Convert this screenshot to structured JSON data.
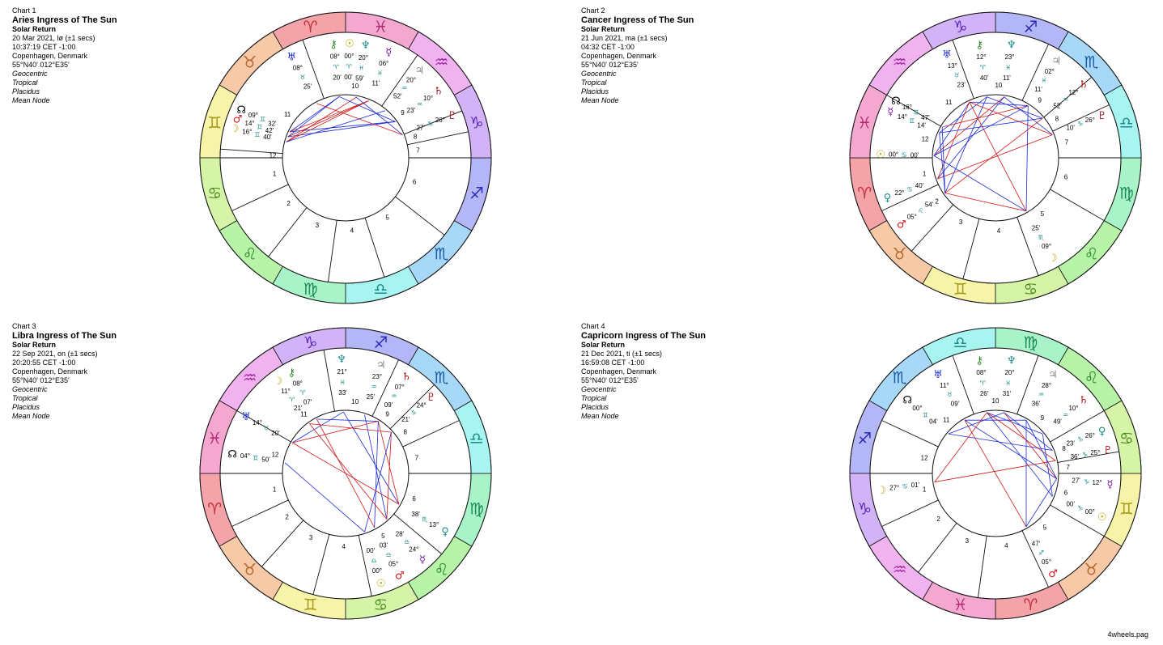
{
  "colors": {
    "blue_aspect": "#1a2bd6",
    "red_aspect": "#d01818",
    "ring_stroke": "#111111"
  },
  "signs": [
    {
      "glyph": "♈",
      "color": "#f4a3a8",
      "fg": "#c5303a"
    },
    {
      "glyph": "♉",
      "color": "#f7c9a6",
      "fg": "#b5652a"
    },
    {
      "glyph": "♊",
      "color": "#f7f3a8",
      "fg": "#a59a1a"
    },
    {
      "glyph": "♋",
      "color": "#d5f4a8",
      "fg": "#4a8a1a"
    },
    {
      "glyph": "♌",
      "color": "#b8f4a8",
      "fg": "#2a8a2a"
    },
    {
      "glyph": "♍",
      "color": "#a8f4c8",
      "fg": "#1a8a55"
    },
    {
      "glyph": "♎",
      "color": "#a8f4f0",
      "fg": "#1a8a88"
    },
    {
      "glyph": "♏",
      "color": "#a8d8f7",
      "fg": "#1a5aa5"
    },
    {
      "glyph": "♐",
      "color": "#b3b6f7",
      "fg": "#2a2ab5"
    },
    {
      "glyph": "♑",
      "color": "#d3b3f7",
      "fg": "#5a2ab5"
    },
    {
      "glyph": "♒",
      "color": "#f0b3f0",
      "fg": "#a52aa5"
    },
    {
      "glyph": "♓",
      "color": "#f4a8d0",
      "fg": "#b52a75"
    }
  ],
  "charts": [
    {
      "label": "Chart 1",
      "title": "Aries Ingress of The Sun",
      "subtitle": "Solar Return",
      "date": "20 Mar 2021, lø  (±1 secs)",
      "time": "10:37:19  CET  -1:00",
      "place": "Copenhagen, Denmark",
      "coords": "55°N40' 012°E35'",
      "settings": [
        "Geocentric",
        "Tropical",
        "Placidus",
        "Mean Node"
      ],
      "asc": 90,
      "houses": [
        {
          "n": "1",
          "a": 180
        },
        {
          "n": "2",
          "a": 205
        },
        {
          "n": "3",
          "a": 232
        },
        {
          "n": "4",
          "a": 262
        },
        {
          "n": "5",
          "a": 288
        },
        {
          "n": "6",
          "a": 322
        },
        {
          "n": "7",
          "a": 0
        },
        {
          "n": "8",
          "a": 12
        },
        {
          "n": "9",
          "a": 22
        },
        {
          "n": "10",
          "a": 55
        },
        {
          "n": "11",
          "a": 110
        },
        {
          "n": "12",
          "a": 176
        }
      ],
      "planets": [
        {
          "g": "☊",
          "c": "#000000",
          "a": 155,
          "deg": "09°",
          "sg": "♊",
          "min": "32'"
        },
        {
          "g": "♂",
          "c": "#d01818",
          "a": 160,
          "deg": "14°",
          "sg": "♊",
          "min": "42'"
        },
        {
          "g": "☽",
          "c": "#b8a000",
          "a": 165,
          "deg": "16°",
          "sg": "♊",
          "min": "40'"
        },
        {
          "g": "♅",
          "c": "#1a2bd6",
          "a": 118,
          "deg": "08°",
          "sg": "♉",
          "min": "25'"
        },
        {
          "g": "⚷",
          "c": "#2a8a2a",
          "a": 96,
          "deg": "08°",
          "sg": "♈",
          "min": "20'"
        },
        {
          "g": "☉",
          "c": "#b8a000",
          "a": 88,
          "deg": "00°",
          "sg": "♈",
          "min": "00'"
        },
        {
          "g": "♆",
          "c": "#1a8a88",
          "a": 80,
          "deg": "20°",
          "sg": "♓",
          "min": "59'"
        },
        {
          "g": "☿",
          "c": "#7a1aa5",
          "a": 68,
          "deg": "06°",
          "sg": "♓",
          "min": "11'"
        },
        {
          "g": "♃",
          "c": "#888888",
          "a": 50,
          "deg": "20°",
          "sg": "♒",
          "min": "52'"
        },
        {
          "g": "♄",
          "c": "#a51a1a",
          "a": 36,
          "deg": "10°",
          "sg": "♒",
          "min": "23'"
        },
        {
          "g": "♇",
          "c": "#a51a1a",
          "a": 22,
          "deg": "26°",
          "sg": "♑",
          "min": "27'"
        }
      ]
    },
    {
      "label": "Chart 2",
      "title": "Cancer Ingress of The Sun",
      "subtitle": "Solar Return",
      "date": "21 Jun 2021, ma  (±1 secs)",
      "time": "04:32  CET  -1:00",
      "place": "Copenhagen, Denmark",
      "coords": "55°N40' 012°E35'",
      "settings": [
        "Geocentric",
        "Tropical",
        "Placidus",
        "Mean Node"
      ],
      "asc": 180,
      "houses": [
        {
          "n": "1",
          "a": 180
        },
        {
          "n": "2",
          "a": 205
        },
        {
          "n": "3",
          "a": 228
        },
        {
          "n": "4",
          "a": 255
        },
        {
          "n": "5",
          "a": 290
        },
        {
          "n": "6",
          "a": 330
        },
        {
          "n": "7",
          "a": 0
        },
        {
          "n": "8",
          "a": 25
        },
        {
          "n": "9",
          "a": 40
        },
        {
          "n": "10",
          "a": 65
        },
        {
          "n": "11",
          "a": 110
        },
        {
          "n": "12",
          "a": 150
        }
      ],
      "planets": [
        {
          "g": "⚷",
          "c": "#2a8a2a",
          "a": 98,
          "deg": "12°",
          "sg": "♈",
          "min": "40'"
        },
        {
          "g": "♆",
          "c": "#1a8a88",
          "a": 82,
          "deg": "23°",
          "sg": "♓",
          "min": "11'"
        },
        {
          "g": "♅",
          "c": "#1a2bd6",
          "a": 115,
          "deg": "13°",
          "sg": "♉",
          "min": "23'"
        },
        {
          "g": "♃",
          "c": "#888888",
          "a": 58,
          "deg": "02°",
          "sg": "♓",
          "min": "11'"
        },
        {
          "g": "♄",
          "c": "#a51a1a",
          "a": 40,
          "deg": "12°",
          "sg": "♒",
          "min": "52'"
        },
        {
          "g": "♇",
          "c": "#a51a1a",
          "a": 22,
          "deg": "26°",
          "sg": "♑",
          "min": "10'"
        },
        {
          "g": "☊",
          "c": "#000000",
          "a": 150,
          "deg": "16°",
          "sg": "♊",
          "min": "47'"
        },
        {
          "g": "☿",
          "c": "#7a1aa5",
          "a": 156,
          "deg": "14°",
          "sg": "♊",
          "min": "14'"
        },
        {
          "g": "☉",
          "c": "#b8a000",
          "a": 178,
          "deg": "00°",
          "sg": "♋",
          "min": "00'"
        },
        {
          "g": "♀",
          "c": "#1a8a88",
          "a": 200,
          "deg": "22°",
          "sg": "♋",
          "min": "40'"
        },
        {
          "g": "♂",
          "c": "#d01818",
          "a": 215,
          "deg": "05°",
          "sg": "♌",
          "min": "54'"
        },
        {
          "g": "☽",
          "c": "#b8a000",
          "a": 300,
          "deg": "09°",
          "sg": "♏",
          "min": "25'"
        }
      ]
    },
    {
      "label": "Chart 3",
      "title": "Libra Ingress of The Sun",
      "subtitle": "Solar Return",
      "date": "22 Sep 2021, on  (±1 secs)",
      "time": "20:20:55  CET  -1:00",
      "place": "Copenhagen, Denmark",
      "coords": "55°N40' 012°E35'",
      "settings": [
        "Geocentric",
        "Tropical",
        "Placidus",
        "Mean Node"
      ],
      "asc": 180,
      "houses": [
        {
          "n": "1",
          "a": 180
        },
        {
          "n": "2",
          "a": 205
        },
        {
          "n": "3",
          "a": 228
        },
        {
          "n": "4",
          "a": 255
        },
        {
          "n": "5",
          "a": 282
        },
        {
          "n": "6",
          "a": 320
        },
        {
          "n": "7",
          "a": 0
        },
        {
          "n": "8",
          "a": 25
        },
        {
          "n": "9",
          "a": 45
        },
        {
          "n": "10",
          "a": 65
        },
        {
          "n": "11",
          "a": 100
        },
        {
          "n": "12",
          "a": 150
        }
      ],
      "planets": [
        {
          "g": "♆",
          "c": "#1a8a88",
          "a": 92,
          "deg": "21°",
          "sg": "♓",
          "min": "33'"
        },
        {
          "g": "♃",
          "c": "#888888",
          "a": 72,
          "deg": "23°",
          "sg": "♒",
          "min": "25'"
        },
        {
          "g": "♄",
          "c": "#a51a1a",
          "a": 58,
          "deg": "07°",
          "sg": "♒",
          "min": "09'"
        },
        {
          "g": "♇",
          "c": "#a51a1a",
          "a": 42,
          "deg": "24°",
          "sg": "♑",
          "min": "21'"
        },
        {
          "g": "⚷",
          "c": "#2a8a2a",
          "a": 118,
          "deg": "08°",
          "sg": "♈",
          "min": "07'"
        },
        {
          "g": "☽",
          "c": "#b8a000",
          "a": 126,
          "deg": "11°",
          "sg": "♈",
          "min": "21'"
        },
        {
          "g": "♅",
          "c": "#1a2bd6",
          "a": 150,
          "deg": "14°",
          "sg": "♉",
          "min": "20'"
        },
        {
          "g": "☊",
          "c": "#000000",
          "a": 170,
          "deg": "04°",
          "sg": "♊",
          "min": "50'"
        },
        {
          "g": "♀",
          "c": "#1a8a88",
          "a": 330,
          "deg": "13°",
          "sg": "♏",
          "min": "38'"
        },
        {
          "g": "☿",
          "c": "#7a1aa5",
          "a": 312,
          "deg": "24°",
          "sg": "♎",
          "min": "28'"
        },
        {
          "g": "♂",
          "c": "#d01818",
          "a": 298,
          "deg": "05°",
          "sg": "♎",
          "min": "03'"
        },
        {
          "g": "☉",
          "c": "#b8a000",
          "a": 288,
          "deg": "00°",
          "sg": "♎",
          "min": "00'"
        }
      ]
    },
    {
      "label": "Chart 4",
      "title": "Capricorn Ingress of The Sun",
      "subtitle": "Solar Return",
      "date": "21 Dec 2021, ti  (±1 secs)",
      "time": "16:59:08  CET  -1:00",
      "place": "Copenhagen, Denmark",
      "coords": "55°N40' 012°E35'",
      "settings": [
        "Geocentric",
        "Tropical",
        "Placidus",
        "Mean Node"
      ],
      "asc": 270,
      "houses": [
        {
          "n": "1",
          "a": 180
        },
        {
          "n": "2",
          "a": 205
        },
        {
          "n": "3",
          "a": 232
        },
        {
          "n": "4",
          "a": 262
        },
        {
          "n": "5",
          "a": 295
        },
        {
          "n": "6",
          "a": 330
        },
        {
          "n": "7",
          "a": 0
        },
        {
          "n": "8",
          "a": 10
        },
        {
          "n": "9",
          "a": 30
        },
        {
          "n": "10",
          "a": 70
        },
        {
          "n": "11",
          "a": 110
        },
        {
          "n": "12",
          "a": 155
        }
      ],
      "planets": [
        {
          "g": "☊",
          "c": "#000000",
          "a": 140,
          "deg": "00°",
          "sg": "♊",
          "min": "04'"
        },
        {
          "g": "♅",
          "c": "#1a2bd6",
          "a": 120,
          "deg": "11°",
          "sg": "♉",
          "min": "09'"
        },
        {
          "g": "⚷",
          "c": "#2a8a2a",
          "a": 98,
          "deg": "08°",
          "sg": "♈",
          "min": "26'"
        },
        {
          "g": "♆",
          "c": "#1a8a88",
          "a": 82,
          "deg": "20°",
          "sg": "♓",
          "min": "31'"
        },
        {
          "g": "♃",
          "c": "#888888",
          "a": 60,
          "deg": "28°",
          "sg": "♒",
          "min": "36'"
        },
        {
          "g": "♄",
          "c": "#a51a1a",
          "a": 40,
          "deg": "10°",
          "sg": "♒",
          "min": "49'"
        },
        {
          "g": "♀",
          "c": "#1a8a88",
          "a": 22,
          "deg": "26°",
          "sg": "♑",
          "min": "23'"
        },
        {
          "g": "♇",
          "c": "#a51a1a",
          "a": 12,
          "deg": "25°",
          "sg": "♑",
          "min": "36'"
        },
        {
          "g": "☿",
          "c": "#7a1aa5",
          "a": 355,
          "deg": "12°",
          "sg": "♑",
          "min": "27'"
        },
        {
          "g": "☉",
          "c": "#b8a000",
          "a": 338,
          "deg": "00°",
          "sg": "♑",
          "min": "00'"
        },
        {
          "g": "♂",
          "c": "#d01818",
          "a": 300,
          "deg": "05°",
          "sg": "♐",
          "min": "47'"
        },
        {
          "g": "☽",
          "c": "#b8a000",
          "a": 188,
          "deg": "27°",
          "sg": "♋",
          "min": "01'"
        }
      ]
    }
  ],
  "footer": "4wheels.pag"
}
